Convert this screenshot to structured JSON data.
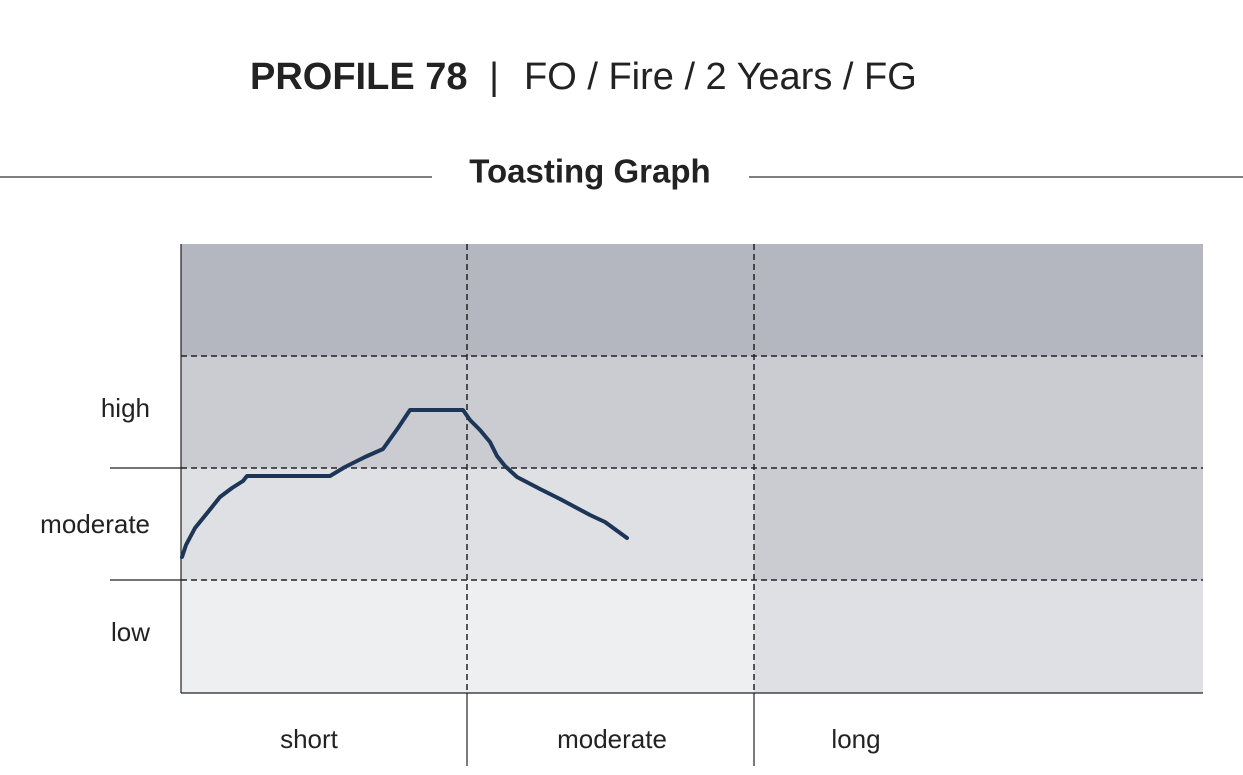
{
  "header": {
    "title": "PROFILE 78",
    "separator": "|",
    "subtitle": "FO / Fire / 2 Years / FG"
  },
  "graph": {
    "title": "Toasting Graph",
    "y_labels": [
      "high",
      "moderate",
      "low"
    ],
    "x_labels": [
      "short",
      "moderate",
      "long"
    ]
  }
}
